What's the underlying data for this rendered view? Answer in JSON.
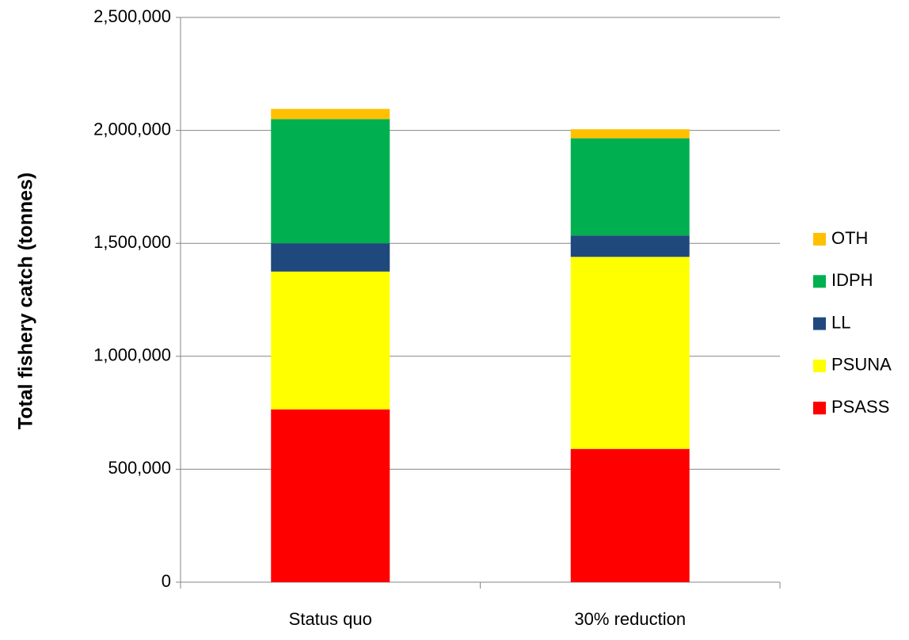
{
  "chart_data": {
    "type": "stacked-bar",
    "y_label": "Total fishery catch (tonnes)",
    "categories": [
      "Status quo",
      "30% reduction"
    ],
    "series": [
      {
        "name": "PSASS",
        "color": "#ff0000",
        "values": [
          765000,
          590000
        ]
      },
      {
        "name": "PSUNA",
        "color": "#ffff00",
        "values": [
          610000,
          850000
        ]
      },
      {
        "name": "LL",
        "color": "#1f497d",
        "values": [
          125000,
          95000
        ]
      },
      {
        "name": "IDPH",
        "color": "#00b050",
        "values": [
          550000,
          430000
        ]
      },
      {
        "name": "OTH",
        "color": "#ffc000",
        "values": [
          45000,
          40000
        ]
      }
    ],
    "ylim": [
      0,
      2500000
    ],
    "yticks": [
      0,
      {
        "value": 500000,
        "label": "500,000"
      },
      {
        "value": 1000000,
        "label": "1,000,000"
      },
      {
        "value": 1500000,
        "label": "1,500,000"
      },
      {
        "value": 2000000,
        "label": "2,000,000"
      },
      {
        "value": 2500000,
        "label": "2,500,000"
      }
    ],
    "grid": true,
    "legend": "right"
  }
}
